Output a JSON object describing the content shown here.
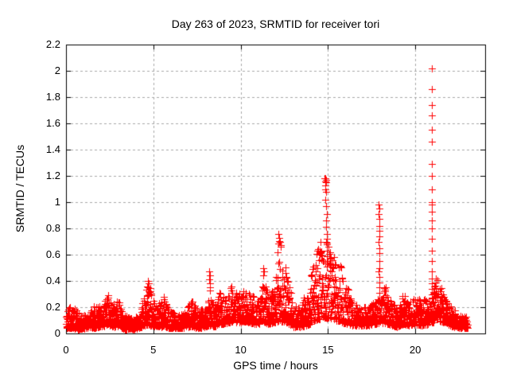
{
  "chart_data": {
    "type": "scatter",
    "title": "Day 263 of 2023, SRMTID for receiver tori",
    "xlabel": "GPS time / hours",
    "ylabel": "SRMTID / TECUs",
    "xlim": [
      0,
      24
    ],
    "ylim": [
      0,
      2.2
    ],
    "xticks": [
      0,
      5,
      10,
      15,
      20
    ],
    "yticks": [
      0,
      0.2,
      0.4,
      0.6,
      0.8,
      1,
      1.2,
      1.4,
      1.6,
      1.8,
      2,
      2.2
    ],
    "grid": true,
    "grid_style": "dashed",
    "grid_color": "#a8a8a8",
    "legend_position": "none",
    "marker": "plus",
    "marker_color": "#ff0000",
    "marker_size_px": 9,
    "background_color": "#ffffff",
    "border_color": "#000000",
    "series": [
      {
        "name": "SRMTID",
        "x_start": 0,
        "x_end": 23,
        "point_density_per_hour": 120,
        "band_envelope": [
          [
            0.0,
            0.04,
            0.2
          ],
          [
            0.3,
            0.04,
            0.22
          ],
          [
            0.7,
            0.03,
            0.16
          ],
          [
            1.1,
            0.04,
            0.15
          ],
          [
            1.5,
            0.04,
            0.2
          ],
          [
            1.9,
            0.05,
            0.22
          ],
          [
            2.4,
            0.06,
            0.29
          ],
          [
            2.7,
            0.05,
            0.22
          ],
          [
            3.0,
            0.05,
            0.26
          ],
          [
            3.4,
            0.03,
            0.14
          ],
          [
            3.8,
            0.03,
            0.12
          ],
          [
            4.2,
            0.04,
            0.16
          ],
          [
            4.5,
            0.06,
            0.3
          ],
          [
            4.7,
            0.07,
            0.4
          ],
          [
            4.9,
            0.06,
            0.33
          ],
          [
            5.2,
            0.05,
            0.2
          ],
          [
            5.6,
            0.05,
            0.28
          ],
          [
            5.9,
            0.04,
            0.18
          ],
          [
            6.3,
            0.04,
            0.15
          ],
          [
            6.7,
            0.04,
            0.16
          ],
          [
            7.2,
            0.05,
            0.25
          ],
          [
            7.6,
            0.04,
            0.18
          ],
          [
            8.0,
            0.05,
            0.18
          ],
          [
            8.25,
            0.06,
            0.3
          ],
          [
            8.5,
            0.05,
            0.2
          ],
          [
            8.8,
            0.07,
            0.32
          ],
          [
            9.2,
            0.08,
            0.26
          ],
          [
            9.5,
            0.09,
            0.37
          ],
          [
            9.9,
            0.08,
            0.3
          ],
          [
            10.2,
            0.09,
            0.33
          ],
          [
            10.6,
            0.08,
            0.3
          ],
          [
            11.0,
            0.07,
            0.26
          ],
          [
            11.3,
            0.09,
            0.48
          ],
          [
            11.6,
            0.07,
            0.28
          ],
          [
            11.9,
            0.08,
            0.35
          ],
          [
            12.2,
            0.09,
            0.74
          ],
          [
            12.45,
            0.09,
            0.65
          ],
          [
            12.7,
            0.08,
            0.45
          ],
          [
            13.0,
            0.05,
            0.22
          ],
          [
            13.4,
            0.05,
            0.2
          ],
          [
            13.8,
            0.06,
            0.35
          ],
          [
            14.1,
            0.08,
            0.5
          ],
          [
            14.4,
            0.1,
            0.68
          ],
          [
            14.7,
            0.12,
            0.72
          ],
          [
            14.9,
            0.12,
            0.6
          ],
          [
            15.2,
            0.1,
            0.62
          ],
          [
            15.5,
            0.09,
            0.6
          ],
          [
            15.8,
            0.08,
            0.5
          ],
          [
            16.1,
            0.07,
            0.35
          ],
          [
            16.5,
            0.06,
            0.25
          ],
          [
            16.9,
            0.06,
            0.2
          ],
          [
            17.3,
            0.06,
            0.22
          ],
          [
            17.7,
            0.07,
            0.25
          ],
          [
            17.95,
            0.08,
            0.32
          ],
          [
            18.2,
            0.08,
            0.35
          ],
          [
            18.6,
            0.06,
            0.25
          ],
          [
            19.0,
            0.05,
            0.2
          ],
          [
            19.3,
            0.07,
            0.3
          ],
          [
            19.7,
            0.06,
            0.24
          ],
          [
            20.0,
            0.07,
            0.28
          ],
          [
            20.4,
            0.06,
            0.24
          ],
          [
            20.7,
            0.07,
            0.3
          ],
          [
            20.95,
            0.08,
            0.28
          ],
          [
            21.2,
            0.09,
            0.45
          ],
          [
            21.5,
            0.09,
            0.35
          ],
          [
            21.8,
            0.07,
            0.25
          ],
          [
            22.2,
            0.05,
            0.18
          ],
          [
            22.6,
            0.04,
            0.15
          ],
          [
            23.0,
            0.04,
            0.12
          ]
        ],
        "highlight_points": [
          [
            2.4,
            0.29
          ],
          [
            2.43,
            0.27
          ],
          [
            4.68,
            0.4
          ],
          [
            4.72,
            0.38
          ],
          [
            4.65,
            0.36
          ],
          [
            4.7,
            0.35
          ],
          [
            5.62,
            0.28
          ],
          [
            5.6,
            0.26
          ],
          [
            8.22,
            0.47
          ],
          [
            8.24,
            0.44
          ],
          [
            8.21,
            0.41
          ],
          [
            8.25,
            0.38
          ],
          [
            8.23,
            0.35
          ],
          [
            8.26,
            0.33
          ],
          [
            11.28,
            0.5
          ],
          [
            11.32,
            0.47
          ],
          [
            11.3,
            0.44
          ],
          [
            12.18,
            0.76
          ],
          [
            12.22,
            0.73
          ],
          [
            12.25,
            0.7
          ],
          [
            12.3,
            0.66
          ],
          [
            14.82,
            1.18
          ],
          [
            14.86,
            1.18
          ],
          [
            14.9,
            1.17
          ],
          [
            14.84,
            1.16
          ],
          [
            14.88,
            1.15
          ],
          [
            14.86,
            1.13
          ],
          [
            14.84,
            1.1
          ],
          [
            14.88,
            1.08
          ],
          [
            14.86,
            1.02
          ],
          [
            14.9,
            0.97
          ],
          [
            14.92,
            0.91
          ],
          [
            14.88,
            0.86
          ],
          [
            14.9,
            0.81
          ],
          [
            14.92,
            0.76
          ],
          [
            14.94,
            0.72
          ],
          [
            14.9,
            0.7
          ],
          [
            14.96,
            0.69
          ],
          [
            14.92,
            0.68
          ],
          [
            14.94,
            0.63
          ],
          [
            14.96,
            0.59
          ],
          [
            15.05,
            0.66
          ],
          [
            15.1,
            0.62
          ],
          [
            17.92,
            0.98
          ],
          [
            17.94,
            0.95
          ],
          [
            17.92,
            0.91
          ],
          [
            17.95,
            0.87
          ],
          [
            17.93,
            0.82
          ],
          [
            17.96,
            0.78
          ],
          [
            17.94,
            0.74
          ],
          [
            17.92,
            0.7
          ],
          [
            17.95,
            0.65
          ],
          [
            17.93,
            0.61
          ],
          [
            17.96,
            0.55
          ],
          [
            17.94,
            0.5
          ],
          [
            17.92,
            0.47
          ],
          [
            17.95,
            0.43
          ],
          [
            17.93,
            0.39
          ],
          [
            17.96,
            0.35
          ],
          [
            18.3,
            0.35
          ],
          [
            18.25,
            0.32
          ],
          [
            20.93,
            2.02
          ],
          [
            20.95,
            1.86
          ],
          [
            20.94,
            1.74
          ],
          [
            20.96,
            1.66
          ],
          [
            20.94,
            1.55
          ],
          [
            20.95,
            1.46
          ],
          [
            20.96,
            1.29
          ],
          [
            20.94,
            1.2
          ],
          [
            20.95,
            1.1
          ],
          [
            20.96,
            1.0
          ],
          [
            20.94,
            0.98
          ],
          [
            20.95,
            0.93
          ],
          [
            20.96,
            0.86
          ],
          [
            20.94,
            0.8
          ],
          [
            20.95,
            0.72
          ],
          [
            20.96,
            0.63
          ],
          [
            20.94,
            0.55
          ],
          [
            20.95,
            0.47
          ],
          [
            20.96,
            0.42
          ],
          [
            20.94,
            0.38
          ],
          [
            20.95,
            0.34
          ],
          [
            20.96,
            0.3
          ],
          [
            20.94,
            0.27
          ]
        ]
      }
    ]
  }
}
